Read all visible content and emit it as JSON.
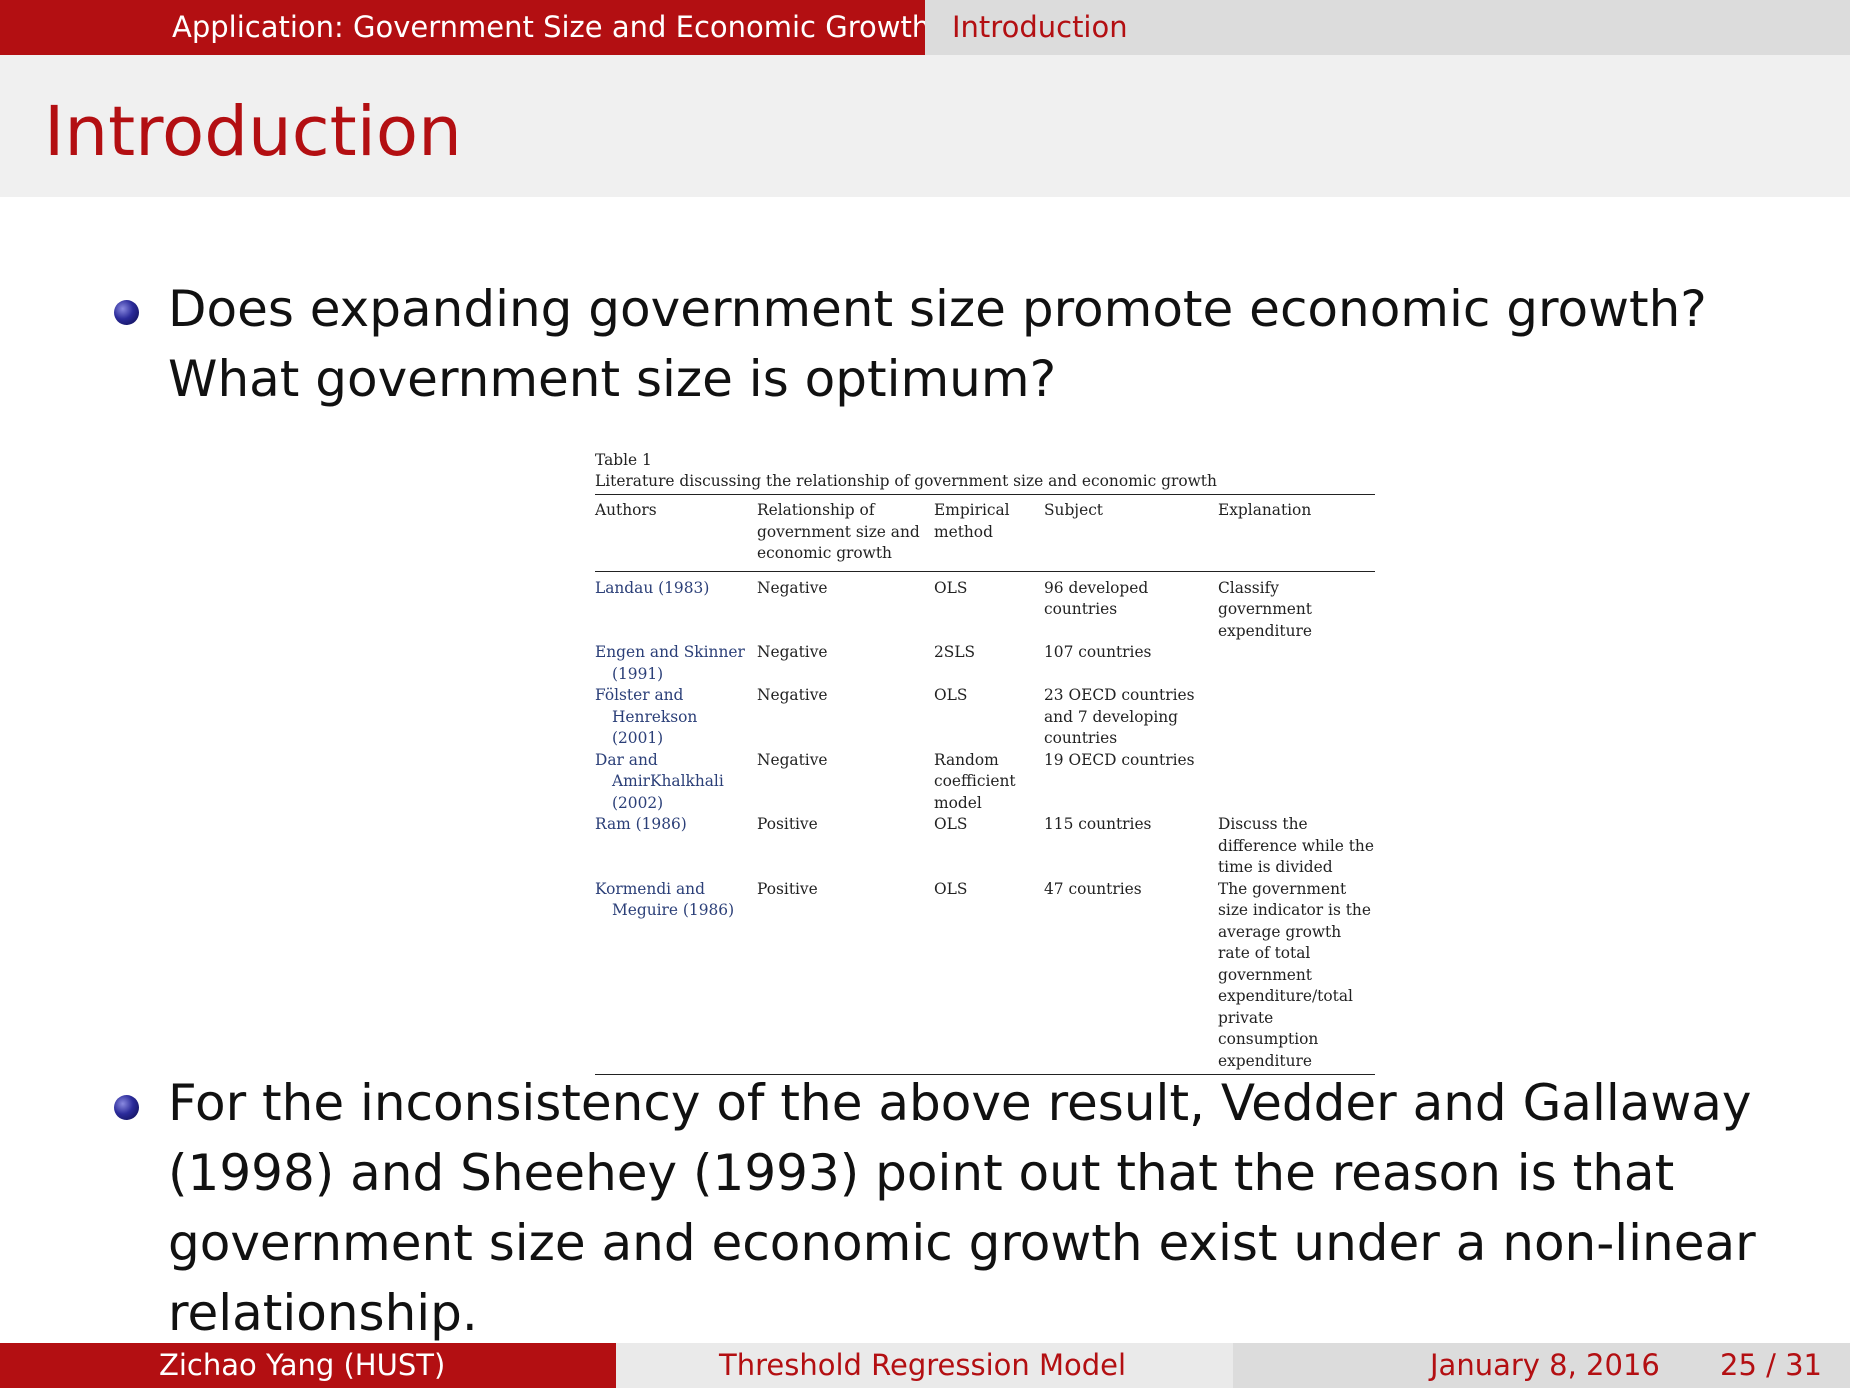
{
  "header": {
    "section": "Application: Government Size and Economic Growth",
    "subsection": "Introduction"
  },
  "frame_title": "Introduction",
  "bullets": [
    "Does expanding government size promote economic growth? What government size is optimum?",
    "For the inconsistency of the above result, Vedder and Gallaway (1998) and Sheehey (1993) point out that the reason is that government size and economic growth exist under a non-linear relationship."
  ],
  "table": {
    "label": "Table 1",
    "caption": "Literature discussing the relationship of government size and economic growth",
    "columns": [
      "Authors",
      "Relationship of government size and economic growth",
      "Empirical method",
      "Subject",
      "Explanation"
    ],
    "rows": [
      [
        "Landau (1983)",
        "Negative",
        "OLS",
        "96 developed countries",
        "Classify government expenditure"
      ],
      [
        "Engen and Skinner (1991)",
        "Negative",
        "2SLS",
        "107 countries",
        ""
      ],
      [
        "Fölster and Henrekson (2001)",
        "Negative",
        "OLS",
        "23 OECD countries and 7 developing countries",
        ""
      ],
      [
        "Dar and AmirKhalkhali (2002)",
        "Negative",
        "Random coefficient model",
        "19 OECD countries",
        ""
      ],
      [
        "Ram (1986)",
        "Positive",
        "OLS",
        "115 countries",
        "Discuss the difference while the time is divided"
      ],
      [
        "Kormendi and Meguire (1986)",
        "Positive",
        "OLS",
        "47 countries",
        "The government size indicator is the average growth rate of total government expenditure/total private consumption expenditure"
      ]
    ]
  },
  "footer": {
    "author": "Zichao Yang (HUST)",
    "talk_title": "Threshold Regression Model",
    "date": "January 8, 2016",
    "page": "25 / 31"
  }
}
